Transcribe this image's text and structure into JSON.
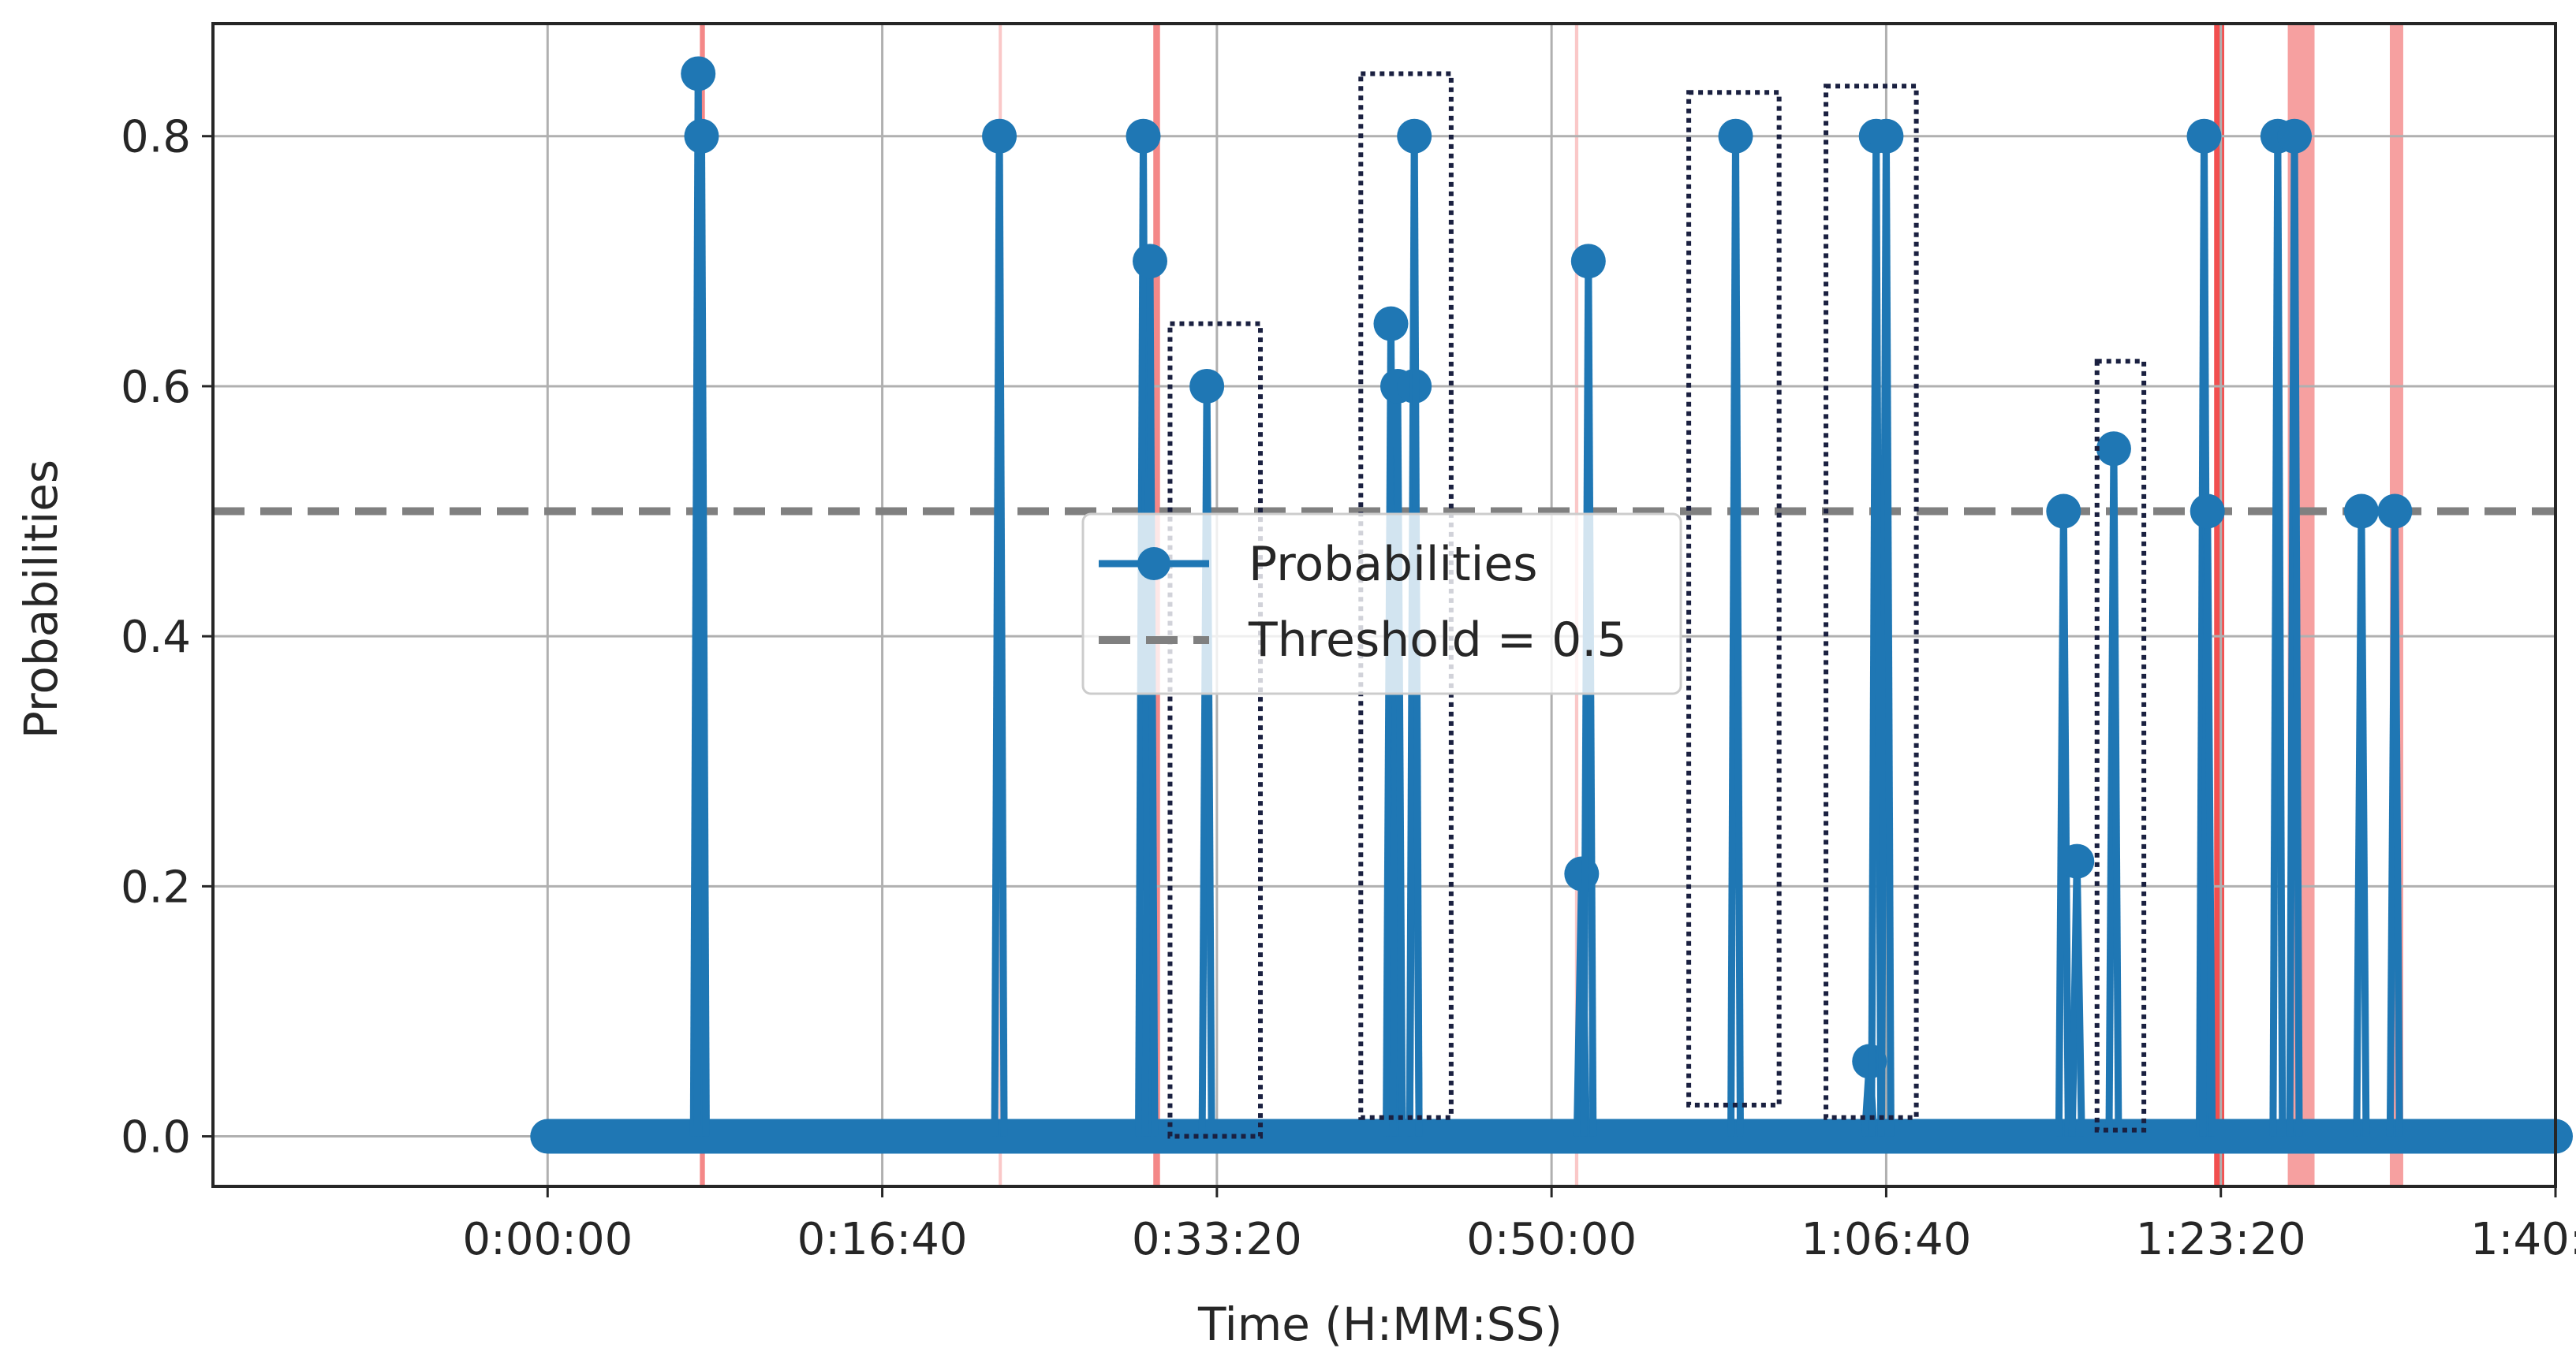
{
  "chart_data": {
    "type": "line",
    "xlabel": "Time (H:MM:SS)",
    "ylabel": "Probabilities",
    "xlim": [
      -1000,
      6000
    ],
    "ylim": [
      -0.04,
      0.89
    ],
    "x_ticks": [
      0,
      1000,
      2000,
      3000,
      4000,
      5000,
      6000
    ],
    "x_tick_labels": [
      "0:00:00",
      "0:16:40",
      "0:33:20",
      "0:50:00",
      "1:06:40",
      "1:23:20",
      "1:40:00"
    ],
    "y_ticks": [
      0.0,
      0.2,
      0.4,
      0.6,
      0.8
    ],
    "y_tick_labels": [
      "0.0",
      "0.2",
      "0.4",
      "0.6",
      "0.8"
    ],
    "grid": true,
    "legend": {
      "position": "center",
      "entries": [
        "Probabilities",
        "Threshold = 0.5"
      ]
    },
    "series": [
      {
        "name": "Probabilities",
        "color": "#1f77b4",
        "style": "stem-markers",
        "baseline_start": 0,
        "baseline_end": 6000,
        "points": [
          {
            "x": 450,
            "y": 0.85
          },
          {
            "x": 460,
            "y": 0.8
          },
          {
            "x": 1350,
            "y": 0.8
          },
          {
            "x": 1780,
            "y": 0.8
          },
          {
            "x": 1800,
            "y": 0.7
          },
          {
            "x": 1970,
            "y": 0.6
          },
          {
            "x": 2520,
            "y": 0.65
          },
          {
            "x": 2540,
            "y": 0.6
          },
          {
            "x": 2590,
            "y": 0.6
          },
          {
            "x": 2590,
            "y": 0.8
          },
          {
            "x": 3090,
            "y": 0.21
          },
          {
            "x": 3110,
            "y": 0.7
          },
          {
            "x": 3550,
            "y": 0.8
          },
          {
            "x": 3950,
            "y": 0.06
          },
          {
            "x": 3970,
            "y": 0.8
          },
          {
            "x": 4000,
            "y": 0.8
          },
          {
            "x": 4530,
            "y": 0.5
          },
          {
            "x": 4570,
            "y": 0.22
          },
          {
            "x": 4680,
            "y": 0.55
          },
          {
            "x": 4950,
            "y": 0.8
          },
          {
            "x": 4960,
            "y": 0.5
          },
          {
            "x": 5170,
            "y": 0.8
          },
          {
            "x": 5220,
            "y": 0.8
          },
          {
            "x": 5420,
            "y": 0.5
          },
          {
            "x": 5520,
            "y": 0.5
          }
        ]
      },
      {
        "name": "Threshold = 0.5",
        "color": "#808080",
        "style": "dashed",
        "y": 0.5
      }
    ],
    "highlight_spans": [
      {
        "x0": 455,
        "x1": 470,
        "color": "#f06060",
        "opacity": 0.75
      },
      {
        "x0": 1348,
        "x1": 1356,
        "color": "#f06060",
        "opacity": 0.35
      },
      {
        "x0": 1810,
        "x1": 1830,
        "color": "#f06060",
        "opacity": 0.75
      },
      {
        "x0": 3070,
        "x1": 3080,
        "color": "#f06060",
        "opacity": 0.35
      },
      {
        "x0": 4980,
        "x1": 5010,
        "color": "#f03030",
        "opacity": 0.85
      },
      {
        "x0": 5200,
        "x1": 5280,
        "color": "#f06060",
        "opacity": 0.6
      },
      {
        "x0": 5505,
        "x1": 5545,
        "color": "#f06060",
        "opacity": 0.6
      }
    ],
    "annotation_boxes": [
      {
        "x0": 1860,
        "x1": 2130,
        "y0": 0.0,
        "y1": 0.65
      },
      {
        "x0": 2430,
        "x1": 2700,
        "y0": 0.015,
        "y1": 0.85
      },
      {
        "x0": 3410,
        "x1": 3680,
        "y0": 0.025,
        "y1": 0.835
      },
      {
        "x0": 3820,
        "x1": 4090,
        "y0": 0.015,
        "y1": 0.84
      },
      {
        "x0": 4630,
        "x1": 4770,
        "y0": 0.005,
        "y1": 0.62
      }
    ]
  }
}
